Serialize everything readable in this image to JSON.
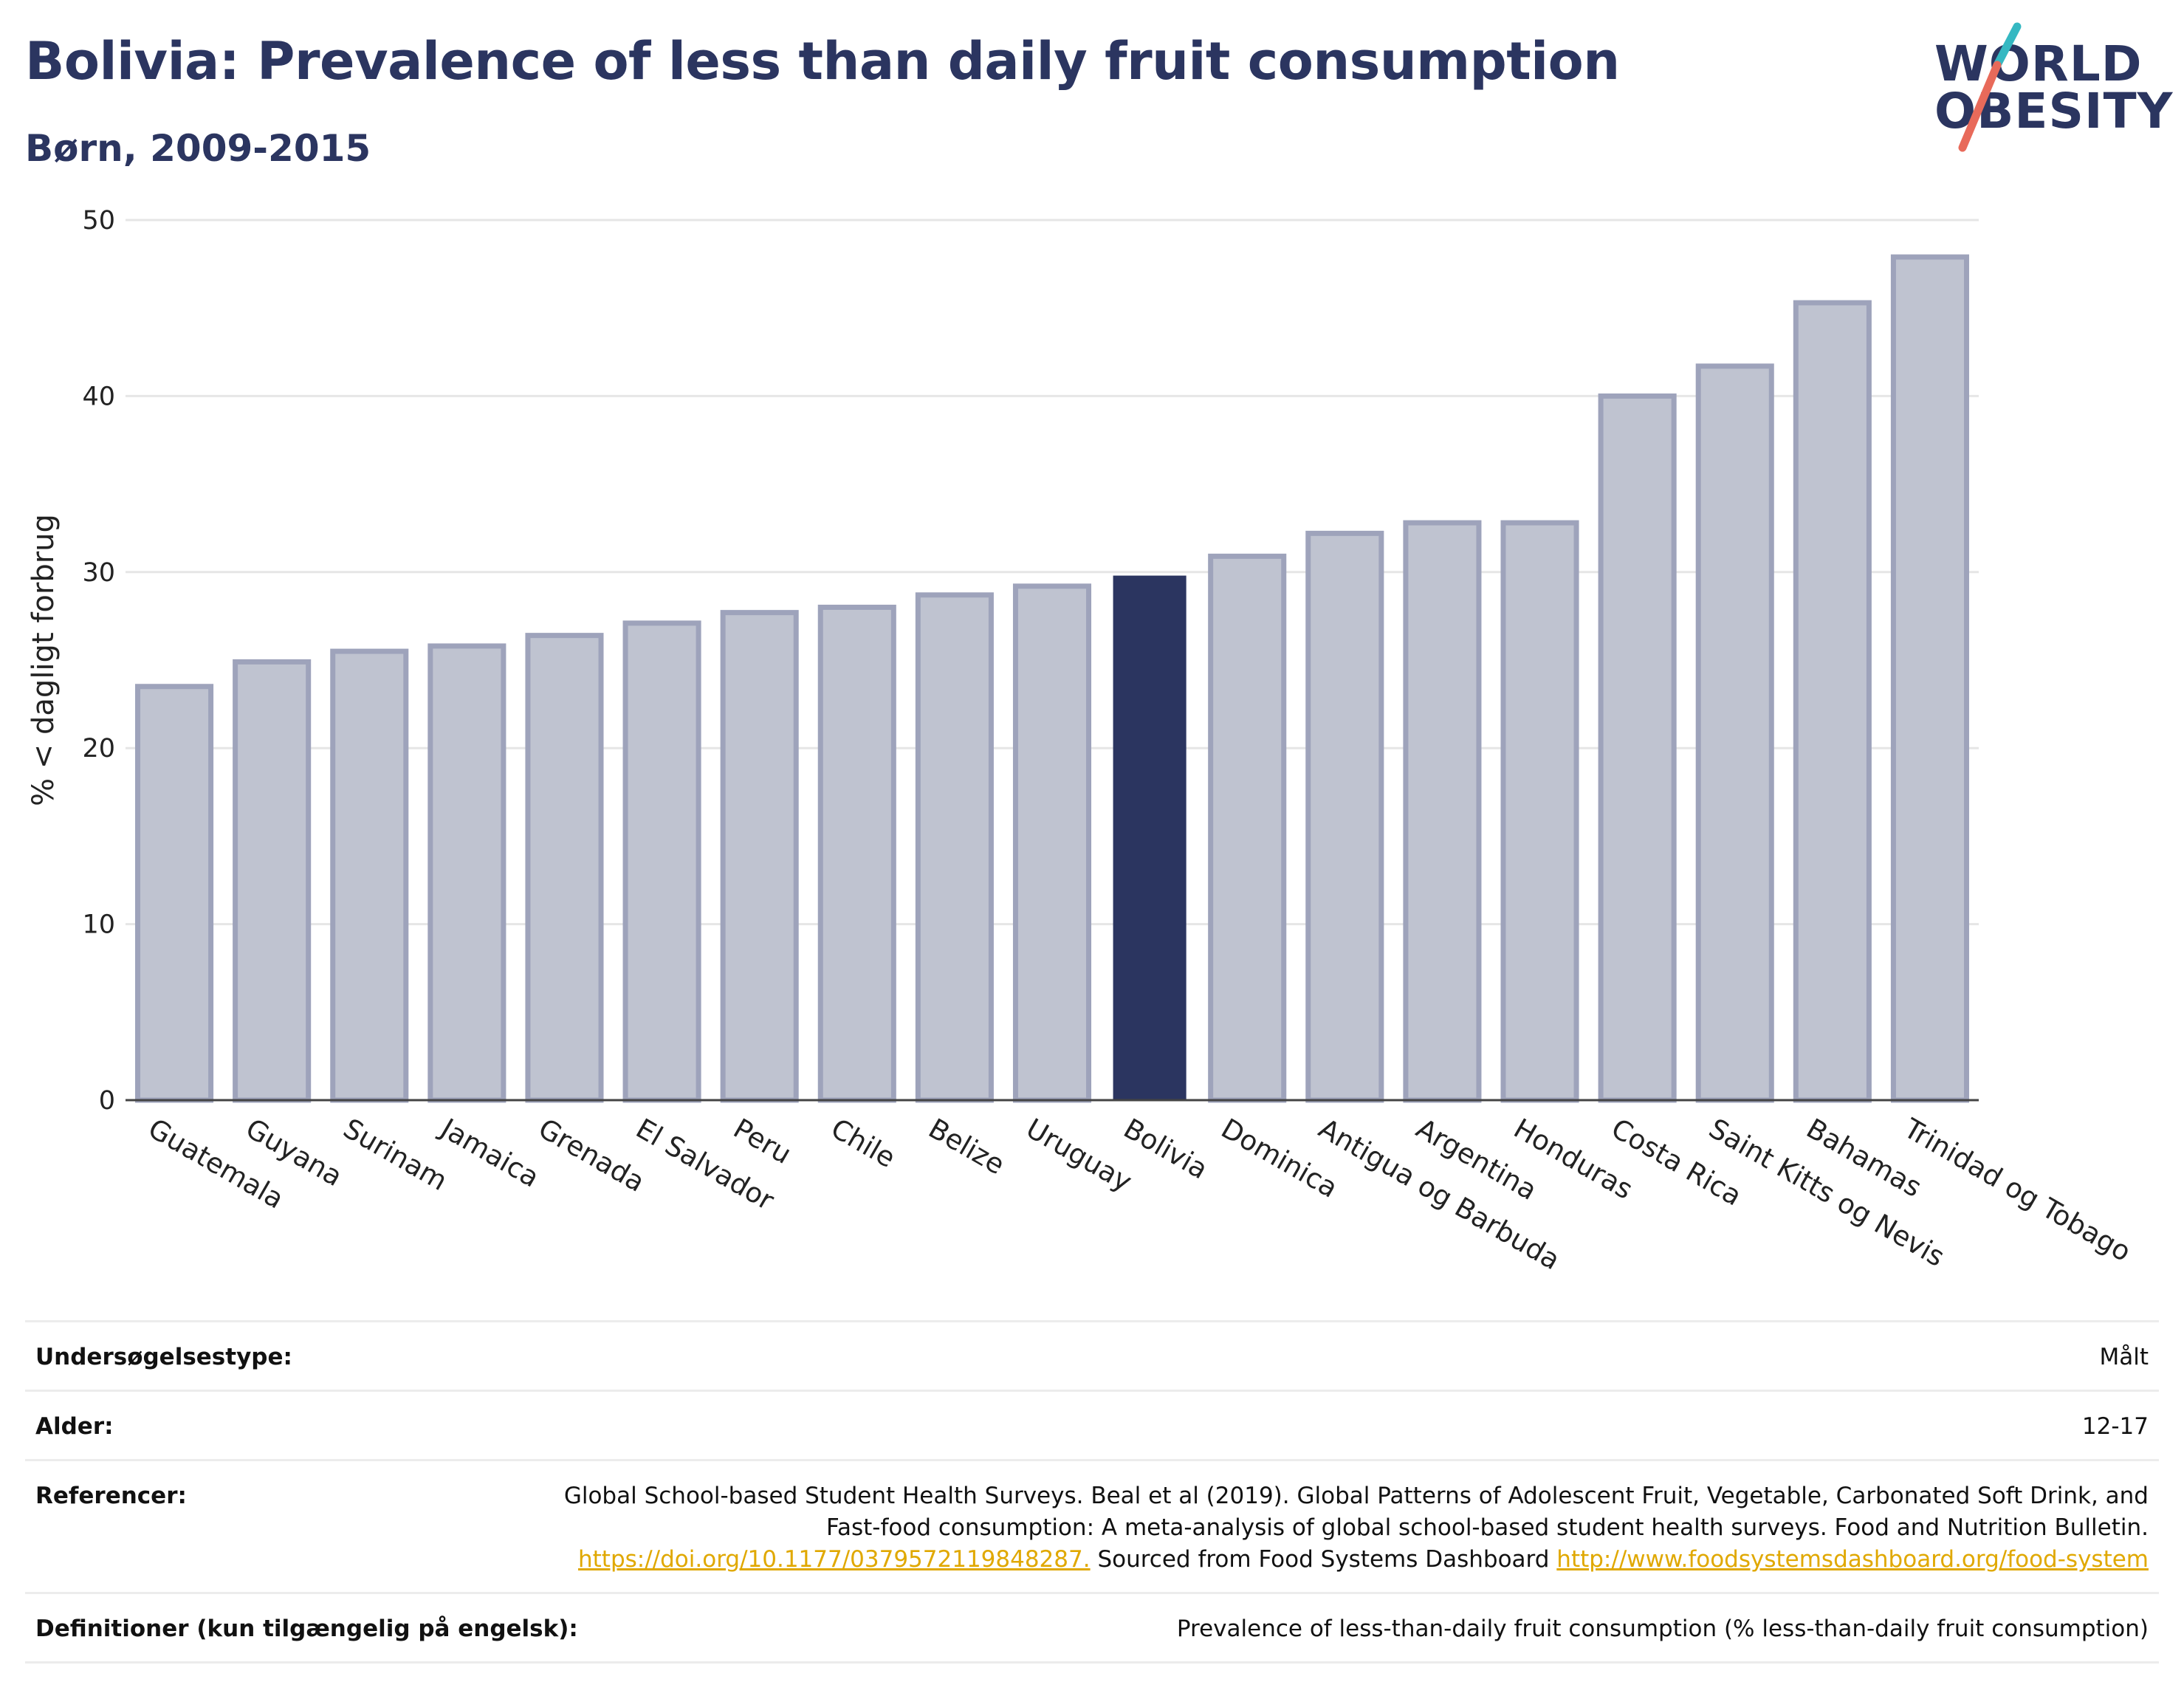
{
  "header": {
    "title": "Bolivia: Prevalence of less than daily fruit consumption",
    "subtitle": "Børn, 2009-2015"
  },
  "logo": {
    "line1": "WORLD",
    "line2": "OBESITY"
  },
  "colors": {
    "highlight_bar": "#2b3560",
    "other_bar_fill": "#bfc3d0",
    "other_bar_stroke": "#9ea3bb",
    "gridline": "#e6e6e6",
    "axis": "#444444",
    "logo_teal": "#35b8c2",
    "logo_coral": "#e86a5a"
  },
  "chart_data": {
    "type": "bar",
    "title": "Bolivia: Prevalence of less than daily fruit consumption",
    "subtitle": "Børn, 2009-2015",
    "xlabel": "",
    "ylabel": "% < dagligt forbrug",
    "ylim": [
      0,
      50
    ],
    "yticks": [
      0,
      10,
      20,
      30,
      40,
      50
    ],
    "grid": true,
    "highlight": "Bolivia",
    "categories": [
      "Guatemala",
      "Guyana",
      "Surinam",
      "Jamaica",
      "Grenada",
      "El Salvador",
      "Peru",
      "Chile",
      "Belize",
      "Uruguay",
      "Bolivia",
      "Dominica",
      "Antigua og Barbuda",
      "Argentina",
      "Honduras",
      "Costa Rica",
      "Saint Kitts og Nevis",
      "Bahamas",
      "Trinidad og Tobago"
    ],
    "values": [
      23.5,
      24.9,
      25.5,
      25.8,
      26.4,
      27.1,
      27.7,
      28.0,
      28.7,
      29.2,
      29.8,
      30.9,
      32.2,
      32.8,
      32.8,
      40.0,
      41.7,
      45.3,
      47.9
    ]
  },
  "meta": {
    "rows": [
      {
        "label": "Undersøgelsestype:",
        "value": "Målt"
      },
      {
        "label": "Alder:",
        "value": "12-17"
      },
      {
        "label": "Referencer:",
        "value": "Global School-based Student Health Surveys. Beal et al (2019). Global Patterns of Adolescent Fruit, Vegetable, Carbonated Soft Drink, and Fast-food consumption: A meta-analysis of global school-based student health surveys. Food and Nutrition Bulletin.",
        "link1": "https://doi.org/10.1177/0379572119848287.",
        "value2": "Sourced from Food Systems Dashboard",
        "link2": "http://www.foodsystemsdashboard.org/food-system"
      },
      {
        "label": "Definitioner (kun tilgængelig på engelsk):",
        "value": "Prevalence of less-than-daily fruit consumption (% less-than-daily fruit consumption)"
      }
    ]
  }
}
